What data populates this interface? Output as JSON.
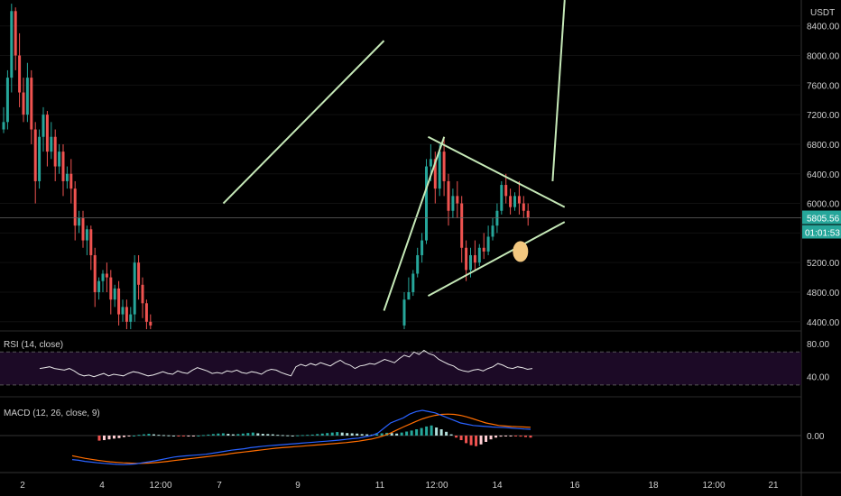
{
  "chart_data": [
    {
      "type": "candlestick",
      "panel": "price",
      "title": "",
      "quote_unit": "USDT",
      "y_ticks": [
        "8400.00",
        "8000.00",
        "7600.00",
        "7200.00",
        "6800.00",
        "6400.00",
        "6000.00",
        "5600.00",
        "5200.00",
        "4800.00",
        "4400.00"
      ],
      "ylim": [
        4300,
        8750
      ],
      "x_ticks": [
        "2",
        "4",
        "12:00",
        "7",
        "9",
        "11",
        "12:00",
        "14",
        "16",
        "18",
        "12:00",
        "21"
      ],
      "last_price": "5805.56",
      "countdown": "01:01:53",
      "candles_segment_1": [
        [
          7000,
          7300,
          7100,
          6950
        ],
        [
          7100,
          7800,
          7700,
          7000
        ],
        [
          7700,
          8700,
          8600,
          7500
        ],
        [
          8600,
          8650,
          8000,
          7800
        ],
        [
          8000,
          8300,
          7500,
          7300
        ],
        [
          7500,
          7700,
          7200,
          7100
        ],
        [
          7200,
          7900,
          7700,
          7100
        ],
        [
          7700,
          7800,
          7000,
          6800
        ],
        [
          7000,
          7100,
          6300,
          6000
        ],
        [
          6300,
          7000,
          6900,
          6200
        ],
        [
          6900,
          7300,
          7200,
          6700
        ],
        [
          7200,
          7250,
          6700,
          6500
        ],
        [
          6700,
          7100,
          6900,
          6600
        ],
        [
          6900,
          7000,
          6500,
          6300
        ],
        [
          6500,
          6800,
          6700,
          6400
        ],
        [
          6700,
          6800,
          6300,
          6100
        ],
        [
          6300,
          6500,
          6400,
          6200
        ],
        [
          6400,
          6600,
          6200,
          6000
        ],
        [
          6200,
          6300,
          5700,
          5500
        ],
        [
          5700,
          5900,
          5800,
          5600
        ],
        [
          5800,
          5900,
          5500,
          5400
        ],
        [
          5500,
          5700,
          5650,
          5300
        ],
        [
          5650,
          5700,
          5300,
          5100
        ],
        [
          5300,
          5400,
          4800,
          4600
        ],
        [
          4800,
          5000,
          4950,
          4700
        ],
        [
          4950,
          5100,
          5050,
          4800
        ],
        [
          5050,
          5200,
          5000,
          4800
        ],
        [
          5000,
          5100,
          4700,
          4500
        ],
        [
          4700,
          4900,
          4850,
          4600
        ],
        [
          4850,
          4950,
          4500,
          4350
        ],
        [
          4500,
          4700,
          4600,
          4400
        ],
        [
          4600,
          4700,
          4400,
          4300
        ],
        [
          4400,
          4600,
          4500,
          4300
        ],
        [
          4500,
          5300,
          5200,
          4400
        ],
        [
          5200,
          5300,
          4900,
          4700
        ],
        [
          4900,
          5000,
          4650,
          4450
        ],
        [
          4650,
          4700,
          4400,
          4300
        ],
        [
          4400,
          4500,
          4350,
          4300
        ]
      ],
      "candles_segment_2": [
        [
          4350,
          4800,
          4700,
          4300
        ],
        [
          4700,
          5000,
          4800,
          4700
        ],
        [
          4800,
          5100,
          5050,
          4750
        ],
        [
          5050,
          5400,
          5300,
          5000
        ],
        [
          5300,
          5600,
          5500,
          5200
        ],
        [
          5500,
          6600,
          6500,
          5450
        ],
        [
          6500,
          6800,
          6600,
          6300
        ],
        [
          6600,
          6700,
          6200,
          6000
        ],
        [
          6200,
          6800,
          6700,
          6100
        ],
        [
          6700,
          6900,
          6300,
          6100
        ],
        [
          6300,
          6400,
          5900,
          5700
        ],
        [
          5900,
          6200,
          6100,
          5800
        ],
        [
          6100,
          6300,
          6000,
          5800
        ],
        [
          6000,
          6100,
          5400,
          5200
        ],
        [
          5400,
          5500,
          5100,
          4950
        ],
        [
          5100,
          5400,
          5300,
          5000
        ],
        [
          5300,
          5500,
          5200,
          5100
        ],
        [
          5200,
          5450,
          5400,
          5150
        ],
        [
          5400,
          5600,
          5350,
          5250
        ],
        [
          5350,
          5700,
          5550,
          5300
        ],
        [
          5550,
          5800,
          5700,
          5500
        ],
        [
          5700,
          6000,
          5900,
          5600
        ],
        [
          5900,
          6300,
          6250,
          5850
        ],
        [
          6250,
          6400,
          6100,
          6000
        ],
        [
          6100,
          6200,
          5950,
          5850
        ],
        [
          5950,
          6150,
          6100,
          5900
        ],
        [
          6100,
          6300,
          6000,
          5850
        ],
        [
          6000,
          6100,
          5900,
          5800
        ],
        [
          5900,
          6000,
          5806,
          5700
        ]
      ],
      "annotations": [
        {
          "type": "trendline",
          "from": [
            7,
            6000
          ],
          "to": [
            11,
            8200
          ]
        },
        {
          "type": "trendline",
          "from": [
            11,
            4550
          ],
          "to": [
            12.5,
            6900
          ]
        },
        {
          "type": "triangle-upper",
          "from": [
            12.1,
            6900
          ],
          "to": [
            15.5,
            5950
          ]
        },
        {
          "type": "triangle-lower",
          "from": [
            12.1,
            4750
          ],
          "to": [
            15.5,
            5750
          ]
        },
        {
          "type": "breakout-projection",
          "from": [
            15.2,
            6300
          ],
          "to": [
            15.5,
            8750
          ]
        },
        {
          "type": "ellipse-marker",
          "at": [
            14.4,
            5350
          ]
        }
      ]
    },
    {
      "type": "line",
      "panel": "rsi",
      "title": "RSI (14, close)",
      "y_ticks": [
        "80.00",
        "40.00"
      ],
      "band": [
        30,
        70
      ],
      "values": [
        50,
        51,
        52,
        50,
        49,
        48,
        50,
        47,
        43,
        41,
        42,
        40,
        42,
        44,
        41,
        43,
        42,
        41,
        44,
        46,
        45,
        43,
        41,
        42,
        44,
        46,
        44,
        43,
        47,
        45,
        44,
        48,
        51,
        49,
        47,
        44,
        45,
        44,
        47,
        46,
        48,
        45,
        44,
        46,
        45,
        43,
        47,
        49,
        48,
        45,
        43,
        41,
        52,
        55,
        53,
        56,
        54,
        57,
        55,
        53,
        57,
        60,
        56,
        54,
        50,
        53,
        54,
        56,
        55,
        58,
        61,
        59,
        57,
        62,
        66,
        64,
        70,
        67,
        72,
        68,
        66,
        61,
        58,
        55,
        53,
        49,
        47,
        46,
        48,
        49,
        47,
        50,
        52,
        56,
        54,
        51,
        50,
        52,
        51,
        49,
        50
      ]
    },
    {
      "type": "histogram+line",
      "panel": "macd",
      "title": "MACD (12, 26, close, 9)",
      "y_ticks": [
        "0.00"
      ],
      "histogram": [
        -20,
        -18,
        -15,
        -12,
        -10,
        -6,
        -3,
        0,
        3,
        5,
        7,
        5,
        3,
        2,
        1,
        0,
        -2,
        -3,
        -2,
        -1,
        0,
        2,
        4,
        6,
        8,
        9,
        7,
        5,
        6,
        8,
        10,
        12,
        9,
        7,
        6,
        5,
        3,
        2,
        1,
        0,
        1,
        2,
        3,
        4,
        6,
        8,
        10,
        12,
        14,
        12,
        10,
        9,
        8,
        6,
        5,
        4,
        6,
        9,
        11,
        10,
        8,
        12,
        16,
        20,
        25,
        30,
        36,
        40,
        32,
        25,
        15,
        5,
        -8,
        -18,
        -30,
        -38,
        -42,
        -35,
        -25,
        -15,
        -8,
        -4,
        -2,
        -1,
        -2,
        -4,
        -6,
        -8
      ],
      "macd": [
        -95,
        -98,
        -102,
        -105,
        -108,
        -110,
        -112,
        -114,
        -115,
        -114,
        -112,
        -108,
        -104,
        -100,
        -95,
        -90,
        -85,
        -82,
        -80,
        -78,
        -76,
        -74,
        -70,
        -66,
        -62,
        -58,
        -55,
        -52,
        -48,
        -45,
        -42,
        -40,
        -38,
        -36,
        -34,
        -32,
        -30,
        -28,
        -26,
        -24,
        -22,
        -20,
        -18,
        -15,
        -12,
        -10,
        -5,
        0,
        10,
        30,
        50,
        60,
        70,
        85,
        95,
        100,
        95,
        90,
        80,
        70,
        60,
        50,
        45,
        40,
        38,
        36,
        34,
        33,
        32,
        30,
        28,
        26,
        25
      ],
      "signal": [
        -80,
        -85,
        -90,
        -94,
        -98,
        -101,
        -104,
        -106,
        -108,
        -109,
        -110,
        -110,
        -109,
        -107,
        -105,
        -102,
        -99,
        -96,
        -93,
        -90,
        -87,
        -84,
        -81,
        -78,
        -75,
        -71,
        -68,
        -65,
        -62,
        -59,
        -56,
        -53,
        -50,
        -48,
        -46,
        -44,
        -42,
        -40,
        -38,
        -36,
        -34,
        -32,
        -30,
        -28,
        -25,
        -22,
        -18,
        -14,
        -8,
        0,
        10,
        22,
        34,
        45,
        56,
        66,
        74,
        80,
        84,
        85,
        84,
        80,
        74,
        66,
        58,
        50,
        45,
        40,
        38,
        36,
        35,
        34,
        33
      ]
    }
  ]
}
